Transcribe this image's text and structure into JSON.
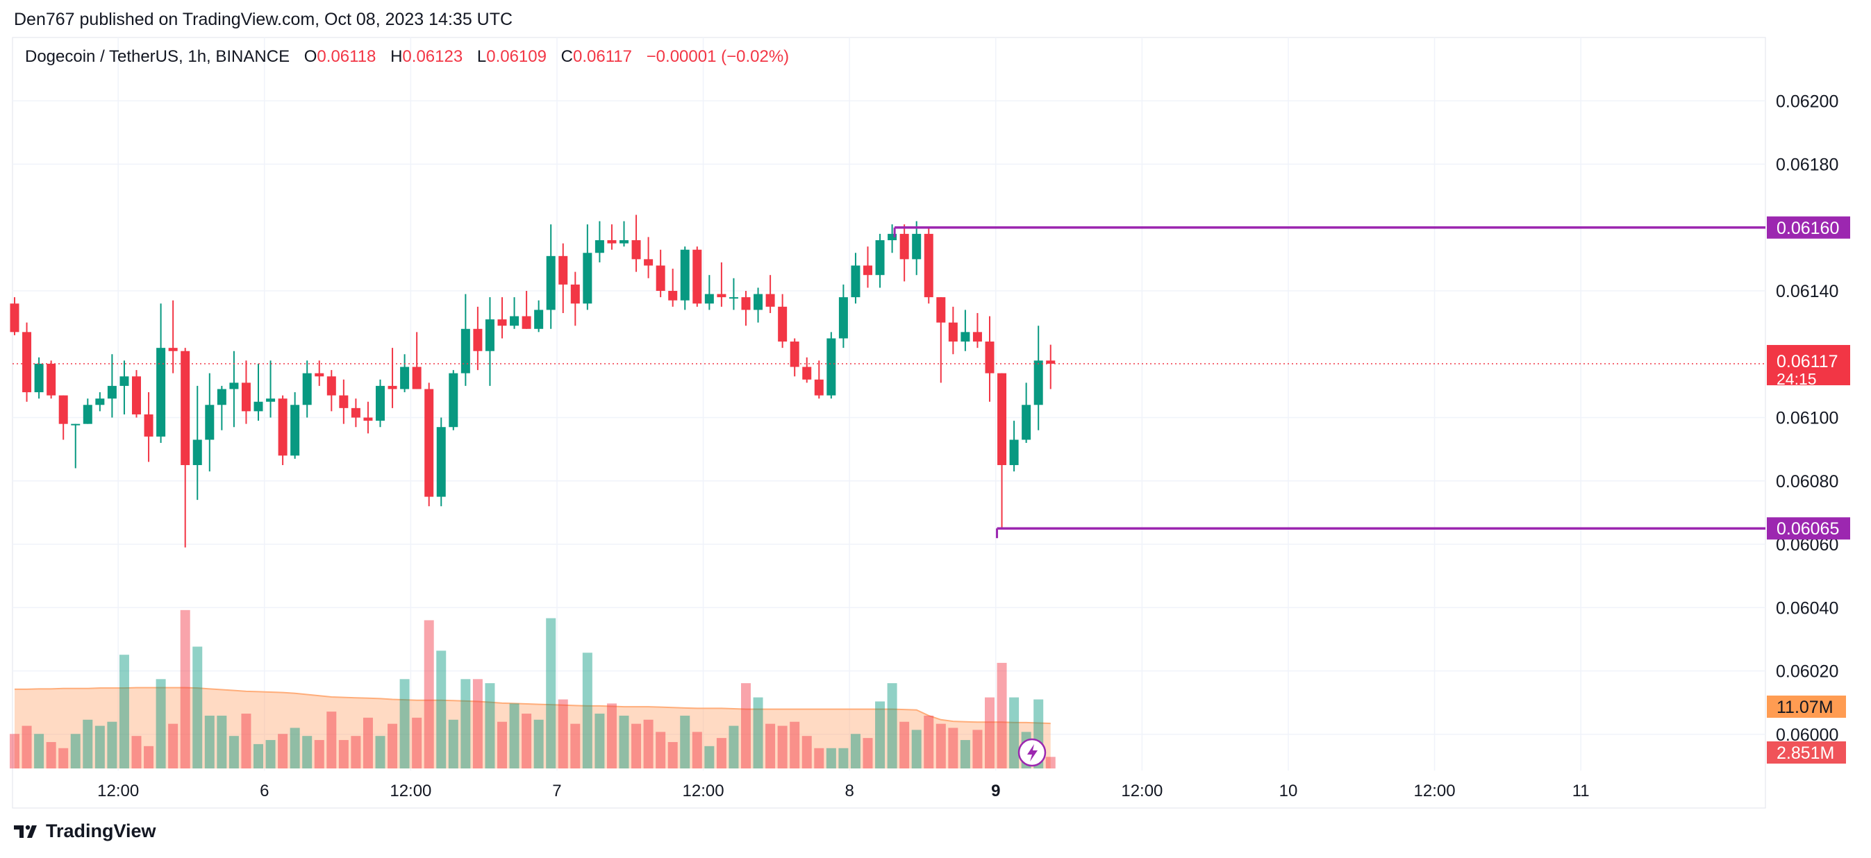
{
  "header": {
    "published": "Den767 published on TradingView.com, Oct 08, 2023 14:35 UTC"
  },
  "legend": {
    "symbol": "Dogecoin / TetherUS, 1h, BINANCE",
    "o_label": "O",
    "o_value": "0.06118",
    "h_label": "H",
    "h_value": "0.06123",
    "l_label": "L",
    "l_value": "0.06109",
    "c_label": "C",
    "c_value": "0.06117",
    "change": "−0.00001 (−0.02%)"
  },
  "footer": {
    "brand": "TradingView"
  },
  "colors": {
    "up": "#089981",
    "down": "#f23645",
    "level": "#9c27b0",
    "volume_ma": "#ffad7a",
    "grid": "#f0f3fa"
  },
  "chart_data": {
    "type": "candlestick",
    "title": "Dogecoin / TetherUS, 1h, BINANCE",
    "y_ticks": [
      "0.06200",
      "0.06180",
      "0.06140",
      "0.06100",
      "0.06080",
      "0.06060",
      "0.06040",
      "0.06020",
      "0.06000"
    ],
    "ylim": [
      0.05989,
      0.0622
    ],
    "x_ticks": [
      {
        "label": "12:00",
        "bold": false,
        "bar": 8.5
      },
      {
        "label": "6",
        "bold": false,
        "bar": 20.5
      },
      {
        "label": "12:00",
        "bold": false,
        "bar": 32.5
      },
      {
        "label": "7",
        "bold": false,
        "bar": 44.5
      },
      {
        "label": "12:00",
        "bold": false,
        "bar": 56.5
      },
      {
        "label": "8",
        "bold": false,
        "bar": 68.5
      },
      {
        "label": "9",
        "bold": true,
        "bar": 80.5
      },
      {
        "label": "12:00",
        "bold": false,
        "bar": 92.5
      },
      {
        "label": "10",
        "bold": false,
        "bar": 104.5
      },
      {
        "label": "12:00",
        "bold": false,
        "bar": 116.5
      },
      {
        "label": "11",
        "bold": false,
        "bar": 128.5
      }
    ],
    "candles": [
      {
        "o": 0.06136,
        "h": 0.06138,
        "l": 0.06126,
        "c": 0.06127,
        "v": 8.5
      },
      {
        "o": 0.06127,
        "h": 0.0613,
        "l": 0.06105,
        "c": 0.06108,
        "v": 10.5
      },
      {
        "o": 0.06108,
        "h": 0.06119,
        "l": 0.06106,
        "c": 0.06117,
        "v": 8.5
      },
      {
        "o": 0.06117,
        "h": 0.06118,
        "l": 0.06106,
        "c": 0.06107,
        "v": 6.5
      },
      {
        "o": 0.06107,
        "h": 0.06107,
        "l": 0.06093,
        "c": 0.06098,
        "v": 5.0
      },
      {
        "o": 0.06098,
        "h": 0.06098,
        "l": 0.06084,
        "c": 0.06098,
        "v": 8.5
      },
      {
        "o": 0.06098,
        "h": 0.06106,
        "l": 0.06098,
        "c": 0.06104,
        "v": 12.0
      },
      {
        "o": 0.06104,
        "h": 0.06108,
        "l": 0.06102,
        "c": 0.06106,
        "v": 10.5
      },
      {
        "o": 0.06106,
        "h": 0.0612,
        "l": 0.061,
        "c": 0.0611,
        "v": 11.5
      },
      {
        "o": 0.0611,
        "h": 0.06118,
        "l": 0.06101,
        "c": 0.06113,
        "v": 28.0
      },
      {
        "o": 0.06113,
        "h": 0.06115,
        "l": 0.061,
        "c": 0.06101,
        "v": 8.0
      },
      {
        "o": 0.06101,
        "h": 0.06108,
        "l": 0.06086,
        "c": 0.06094,
        "v": 5.5
      },
      {
        "o": 0.06094,
        "h": 0.06136,
        "l": 0.06092,
        "c": 0.06122,
        "v": 22.0
      },
      {
        "o": 0.06122,
        "h": 0.06137,
        "l": 0.06114,
        "c": 0.06121,
        "v": 11.0
      },
      {
        "o": 0.06121,
        "h": 0.06122,
        "l": 0.06059,
        "c": 0.06085,
        "v": 39.0
      },
      {
        "o": 0.06085,
        "h": 0.0611,
        "l": 0.06074,
        "c": 0.06093,
        "v": 30.0
      },
      {
        "o": 0.06093,
        "h": 0.06114,
        "l": 0.06083,
        "c": 0.06104,
        "v": 13.0
      },
      {
        "o": 0.06104,
        "h": 0.0611,
        "l": 0.06096,
        "c": 0.06109,
        "v": 13.0
      },
      {
        "o": 0.06109,
        "h": 0.06121,
        "l": 0.06097,
        "c": 0.06111,
        "v": 8.0
      },
      {
        "o": 0.06111,
        "h": 0.06118,
        "l": 0.06098,
        "c": 0.06102,
        "v": 13.5
      },
      {
        "o": 0.06102,
        "h": 0.06117,
        "l": 0.06099,
        "c": 0.06105,
        "v": 6.0
      },
      {
        "o": 0.06105,
        "h": 0.06118,
        "l": 0.061,
        "c": 0.06106,
        "v": 7.0
      },
      {
        "o": 0.06106,
        "h": 0.06107,
        "l": 0.06085,
        "c": 0.06088,
        "v": 8.5
      },
      {
        "o": 0.06088,
        "h": 0.06108,
        "l": 0.06087,
        "c": 0.06104,
        "v": 10.0
      },
      {
        "o": 0.06104,
        "h": 0.06118,
        "l": 0.061,
        "c": 0.06114,
        "v": 8.0
      },
      {
        "o": 0.06114,
        "h": 0.06118,
        "l": 0.0611,
        "c": 0.06113,
        "v": 7.0
      },
      {
        "o": 0.06113,
        "h": 0.06115,
        "l": 0.06102,
        "c": 0.06107,
        "v": 14.0
      },
      {
        "o": 0.06107,
        "h": 0.06112,
        "l": 0.06098,
        "c": 0.06103,
        "v": 7.0
      },
      {
        "o": 0.06103,
        "h": 0.06106,
        "l": 0.06097,
        "c": 0.061,
        "v": 8.0
      },
      {
        "o": 0.061,
        "h": 0.06105,
        "l": 0.06095,
        "c": 0.06099,
        "v": 12.5
      },
      {
        "o": 0.06099,
        "h": 0.06112,
        "l": 0.06097,
        "c": 0.0611,
        "v": 8.0
      },
      {
        "o": 0.0611,
        "h": 0.06122,
        "l": 0.06103,
        "c": 0.06109,
        "v": 11.0
      },
      {
        "o": 0.06109,
        "h": 0.0612,
        "l": 0.06108,
        "c": 0.06116,
        "v": 22.0
      },
      {
        "o": 0.06116,
        "h": 0.06127,
        "l": 0.06109,
        "c": 0.06109,
        "v": 12.5
      },
      {
        "o": 0.06109,
        "h": 0.06111,
        "l": 0.06072,
        "c": 0.06075,
        "v": 36.5
      },
      {
        "o": 0.06075,
        "h": 0.061,
        "l": 0.06072,
        "c": 0.06097,
        "v": 29.0
      },
      {
        "o": 0.06097,
        "h": 0.06115,
        "l": 0.06096,
        "c": 0.06114,
        "v": 12.0
      },
      {
        "o": 0.06114,
        "h": 0.06139,
        "l": 0.0611,
        "c": 0.06128,
        "v": 22.0
      },
      {
        "o": 0.06128,
        "h": 0.06135,
        "l": 0.06115,
        "c": 0.06121,
        "v": 22.0
      },
      {
        "o": 0.06121,
        "h": 0.06138,
        "l": 0.0611,
        "c": 0.06131,
        "v": 21.0
      },
      {
        "o": 0.06131,
        "h": 0.06138,
        "l": 0.06125,
        "c": 0.06129,
        "v": 11.5
      },
      {
        "o": 0.06129,
        "h": 0.06138,
        "l": 0.06128,
        "c": 0.06132,
        "v": 16.0
      },
      {
        "o": 0.06132,
        "h": 0.0614,
        "l": 0.06128,
        "c": 0.06128,
        "v": 13.5
      },
      {
        "o": 0.06128,
        "h": 0.06137,
        "l": 0.06127,
        "c": 0.06134,
        "v": 12.0
      },
      {
        "o": 0.06134,
        "h": 0.06161,
        "l": 0.06128,
        "c": 0.06151,
        "v": 37.0
      },
      {
        "o": 0.06151,
        "h": 0.06155,
        "l": 0.06133,
        "c": 0.06142,
        "v": 17.0
      },
      {
        "o": 0.06142,
        "h": 0.06146,
        "l": 0.06129,
        "c": 0.06136,
        "v": 11.0
      },
      {
        "o": 0.06136,
        "h": 0.06161,
        "l": 0.06134,
        "c": 0.06152,
        "v": 28.5
      },
      {
        "o": 0.06152,
        "h": 0.06162,
        "l": 0.06149,
        "c": 0.06156,
        "v": 13.5
      },
      {
        "o": 0.06156,
        "h": 0.06161,
        "l": 0.06153,
        "c": 0.06155,
        "v": 16.0
      },
      {
        "o": 0.06155,
        "h": 0.06162,
        "l": 0.06154,
        "c": 0.06156,
        "v": 13.0
      },
      {
        "o": 0.06156,
        "h": 0.06164,
        "l": 0.06146,
        "c": 0.0615,
        "v": 11.0
      },
      {
        "o": 0.0615,
        "h": 0.06157,
        "l": 0.06144,
        "c": 0.06148,
        "v": 12.0
      },
      {
        "o": 0.06148,
        "h": 0.06153,
        "l": 0.06138,
        "c": 0.0614,
        "v": 9.0
      },
      {
        "o": 0.0614,
        "h": 0.06147,
        "l": 0.06135,
        "c": 0.06137,
        "v": 6.5
      },
      {
        "o": 0.06137,
        "h": 0.06154,
        "l": 0.06134,
        "c": 0.06153,
        "v": 13.0
      },
      {
        "o": 0.06153,
        "h": 0.06154,
        "l": 0.06135,
        "c": 0.06136,
        "v": 9.0
      },
      {
        "o": 0.06136,
        "h": 0.06145,
        "l": 0.06134,
        "c": 0.06139,
        "v": 5.5
      },
      {
        "o": 0.06139,
        "h": 0.06149,
        "l": 0.06135,
        "c": 0.06138,
        "v": 7.5
      },
      {
        "o": 0.06138,
        "h": 0.06144,
        "l": 0.06134,
        "c": 0.06138,
        "v": 10.5
      },
      {
        "o": 0.06138,
        "h": 0.0614,
        "l": 0.06129,
        "c": 0.06134,
        "v": 21.0
      },
      {
        "o": 0.06134,
        "h": 0.06141,
        "l": 0.0613,
        "c": 0.06139,
        "v": 17.5
      },
      {
        "o": 0.06139,
        "h": 0.06145,
        "l": 0.06133,
        "c": 0.06135,
        "v": 11.0
      },
      {
        "o": 0.06135,
        "h": 0.06139,
        "l": 0.06122,
        "c": 0.06124,
        "v": 10.5
      },
      {
        "o": 0.06124,
        "h": 0.06125,
        "l": 0.06113,
        "c": 0.06116,
        "v": 11.5
      },
      {
        "o": 0.06116,
        "h": 0.06119,
        "l": 0.06111,
        "c": 0.06112,
        "v": 8.0
      },
      {
        "o": 0.06112,
        "h": 0.06118,
        "l": 0.06106,
        "c": 0.06107,
        "v": 5.0
      },
      {
        "o": 0.06107,
        "h": 0.06127,
        "l": 0.06106,
        "c": 0.06125,
        "v": 5.0
      },
      {
        "o": 0.06125,
        "h": 0.06142,
        "l": 0.06122,
        "c": 0.06138,
        "v": 5.0
      },
      {
        "o": 0.06138,
        "h": 0.06152,
        "l": 0.06136,
        "c": 0.06148,
        "v": 8.5
      },
      {
        "o": 0.06148,
        "h": 0.06154,
        "l": 0.06141,
        "c": 0.06145,
        "v": 7.5
      },
      {
        "o": 0.06145,
        "h": 0.06158,
        "l": 0.06141,
        "c": 0.06156,
        "v": 16.5
      },
      {
        "o": 0.06156,
        "h": 0.06161,
        "l": 0.06152,
        "c": 0.06158,
        "v": 21.0
      },
      {
        "o": 0.06158,
        "h": 0.06161,
        "l": 0.06143,
        "c": 0.0615,
        "v": 11.5
      },
      {
        "o": 0.0615,
        "h": 0.06162,
        "l": 0.06145,
        "c": 0.06158,
        "v": 9.5
      },
      {
        "o": 0.06158,
        "h": 0.0616,
        "l": 0.06136,
        "c": 0.06138,
        "v": 13.0
      },
      {
        "o": 0.06138,
        "h": 0.06138,
        "l": 0.06111,
        "c": 0.0613,
        "v": 11.0
      },
      {
        "o": 0.0613,
        "h": 0.06135,
        "l": 0.0612,
        "c": 0.06124,
        "v": 10.0
      },
      {
        "o": 0.06124,
        "h": 0.06134,
        "l": 0.06121,
        "c": 0.06127,
        "v": 7.0
      },
      {
        "o": 0.06127,
        "h": 0.06133,
        "l": 0.06122,
        "c": 0.06124,
        "v": 9.5
      },
      {
        "o": 0.06124,
        "h": 0.06132,
        "l": 0.06105,
        "c": 0.06114,
        "v": 17.5
      },
      {
        "o": 0.06114,
        "h": 0.06114,
        "l": 0.06065,
        "c": 0.06085,
        "v": 26.0
      },
      {
        "o": 0.06085,
        "h": 0.06099,
        "l": 0.06083,
        "c": 0.06093,
        "v": 17.5
      },
      {
        "o": 0.06093,
        "h": 0.06111,
        "l": 0.06092,
        "c": 0.06104,
        "v": 9.0
      },
      {
        "o": 0.06104,
        "h": 0.06129,
        "l": 0.06096,
        "c": 0.06118,
        "v": 17.0
      },
      {
        "o": 0.06118,
        "h": 0.06123,
        "l": 0.06109,
        "c": 0.06117,
        "v": 2.851
      }
    ],
    "volume_ma": [
      19.5,
      19.5,
      19.6,
      19.6,
      19.7,
      19.7,
      19.7,
      19.8,
      19.8,
      19.8,
      19.9,
      19.9,
      19.9,
      19.9,
      19.9,
      19.8,
      19.6,
      19.4,
      19.2,
      19.0,
      18.9,
      18.8,
      18.7,
      18.5,
      18.2,
      17.9,
      17.6,
      17.5,
      17.4,
      17.3,
      17.2,
      17.0,
      16.9,
      16.8,
      16.8,
      16.8,
      16.7,
      16.6,
      16.5,
      16.3,
      16.1,
      16.0,
      15.9,
      15.8,
      15.7,
      15.6,
      15.5,
      15.4,
      15.4,
      15.3,
      15.2,
      15.2,
      15.2,
      15.1,
      15.0,
      14.9,
      14.8,
      14.8,
      14.8,
      14.7,
      14.6,
      14.6,
      14.6,
      14.6,
      14.6,
      14.6,
      14.6,
      14.6,
      14.6,
      14.6,
      14.6,
      14.6,
      14.6,
      14.5,
      14.4,
      13.0,
      12.0,
      11.6,
      11.5,
      11.4,
      11.4,
      11.4,
      11.3,
      11.3,
      11.2,
      11.1
    ],
    "levels": [
      {
        "price": 0.0616,
        "label": "0.06160",
        "start_bar": 72.2
      },
      {
        "price": 0.06065,
        "label": "0.06065",
        "start_bar": 80.6
      }
    ],
    "last_price": {
      "label": "0.06117",
      "countdown": "24:15"
    },
    "volume_ma_label": "11.07M",
    "volume_last_label": "2.851M",
    "volume_unit": "M"
  }
}
